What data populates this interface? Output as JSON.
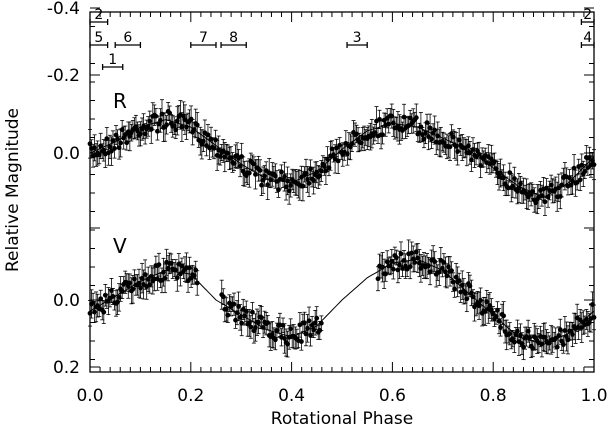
{
  "chart_data": {
    "type": "scatter",
    "xlabel": "Rotational Phase",
    "ylabel": "Relative Magnitude",
    "xlim": [
      0.0,
      1.0
    ],
    "ylim": [
      0.2,
      -0.4
    ],
    "y_inverted": true,
    "x_ticks": [
      "0.0",
      "0.2",
      "0.4",
      "0.6",
      "0.8",
      "1.0"
    ],
    "y_ticks": [
      "-0.4",
      "-0.2",
      "0.0",
      "0.0",
      "0.2"
    ],
    "grid": false,
    "legend": "none",
    "series": [
      {
        "name": "R",
        "model_x": [
          0.0,
          0.05,
          0.1,
          0.15,
          0.2,
          0.25,
          0.3,
          0.35,
          0.4,
          0.45,
          0.5,
          0.55,
          0.6,
          0.65,
          0.7,
          0.75,
          0.8,
          0.85,
          0.9,
          0.95,
          1.0
        ],
        "model_y": [
          0.0,
          -0.03,
          -0.07,
          -0.09,
          -0.07,
          -0.02,
          0.03,
          0.07,
          0.08,
          0.05,
          -0.01,
          -0.06,
          -0.08,
          -0.07,
          -0.04,
          -0.01,
          0.04,
          0.09,
          0.12,
          0.08,
          0.01
        ]
      },
      {
        "name": "V",
        "model_x": [
          0.0,
          0.05,
          0.1,
          0.15,
          0.2,
          0.25,
          0.3,
          0.35,
          0.4,
          0.45,
          0.5,
          0.55,
          0.6,
          0.65,
          0.7,
          0.75,
          0.8,
          0.85,
          0.9,
          0.95,
          1.0
        ],
        "model_y": [
          0.03,
          -0.01,
          -0.05,
          -0.08,
          -0.07,
          0.0,
          0.04,
          0.08,
          0.1,
          0.07,
          0.0,
          -0.06,
          -0.1,
          -0.11,
          -0.08,
          -0.02,
          0.04,
          0.1,
          0.12,
          0.09,
          0.03
        ]
      }
    ],
    "series_labels": [
      "R",
      "V"
    ],
    "annotations": [
      {
        "label": "2",
        "x_start": 0.0,
        "x_end": 0.035,
        "row": 0
      },
      {
        "label": "5",
        "x_start": 0.0,
        "x_end": 0.035,
        "row": 1
      },
      {
        "label": "6",
        "x_start": 0.05,
        "x_end": 0.1,
        "row": 1
      },
      {
        "label": "1",
        "x_start": 0.025,
        "x_end": 0.065,
        "row": 2
      },
      {
        "label": "7",
        "x_start": 0.2,
        "x_end": 0.25,
        "row": 1
      },
      {
        "label": "8",
        "x_start": 0.26,
        "x_end": 0.31,
        "row": 1
      },
      {
        "label": "3",
        "x_start": 0.51,
        "x_end": 0.55,
        "row": 1
      },
      {
        "label": "2",
        "x_start": 0.975,
        "x_end": 1.0,
        "row": 0
      },
      {
        "label": "4",
        "x_start": 0.975,
        "x_end": 1.0,
        "row": 1
      }
    ]
  }
}
